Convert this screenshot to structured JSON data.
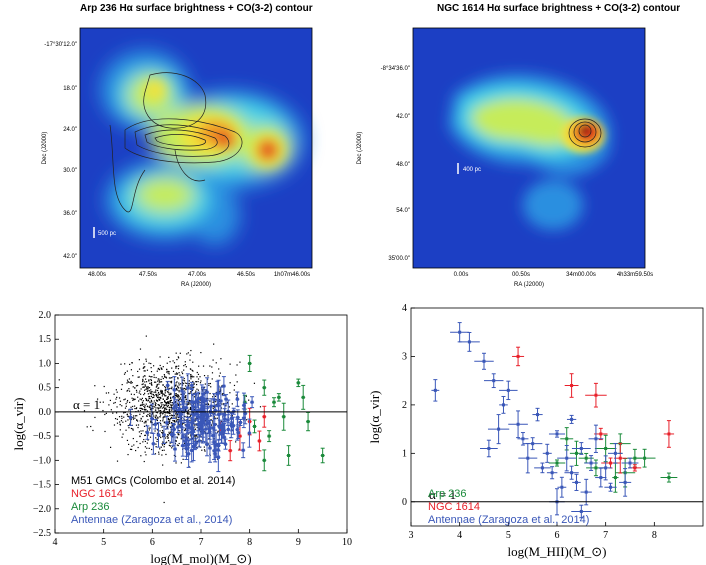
{
  "chart_data": [
    {
      "type": "heatmap",
      "title": "Arp 236 Hα surface brightness + CO(3-2) contour",
      "xlabel": "RA (J2000)",
      "ylabel": "Dec (J2000)",
      "x_ticks": [
        "48.00s",
        "47.50s",
        "47.00s",
        "46.50s",
        "1h07m46.00s"
      ],
      "y_ticks": [
        "-17°30'12.0\"",
        "18.0\"",
        "24.0\"",
        "30.0\"",
        "36.0\"",
        "42.0\""
      ],
      "scalebar": "500 pc",
      "colormap": [
        "#1c3fc4",
        "#2a8fe0",
        "#46d4e8",
        "#c6ec5a",
        "#f2e23a",
        "#f09a28",
        "#e23a1e",
        "#b01810"
      ]
    },
    {
      "type": "heatmap",
      "title": "NGC 1614 Hα surface brightness + CO(3-2) contour",
      "xlabel": "RA (J2000)",
      "ylabel": "Dec (J2000)",
      "x_ticks": [
        "0.00s",
        "00.50s",
        "34m00.00s",
        "4h33m59.50s"
      ],
      "y_ticks": [
        "-8°34'36.0\"",
        "42.0\"",
        "48.0\"",
        "54.0\"",
        "35'00.0\""
      ],
      "scalebar": "400 pc"
    },
    {
      "type": "scatter",
      "xlabel": "log(M_mol)(M_⊙)",
      "ylabel": "log(α_vir)",
      "xlim": [
        4,
        10
      ],
      "ylim": [
        -2.5,
        2.0
      ],
      "x_ticks": [
        "4",
        "5",
        "6",
        "7",
        "8",
        "9",
        "10"
      ],
      "y_ticks": [
        "2.0",
        "1.5",
        "1.0",
        "0.5",
        "0.0",
        "−0.5",
        "−1.0",
        "−1.5",
        "−2.0",
        "−2.5"
      ],
      "hline": {
        "y": 0,
        "label": "α = 1"
      },
      "series": [
        {
          "name": "M51 GMCs (Colombo et al. 2014)",
          "color": "#000000",
          "center": [
            6.4,
            0.1
          ],
          "spread": [
            0.55,
            0.45
          ],
          "count": 1400
        },
        {
          "name": "NGC 1614",
          "color": "#e8202a",
          "points": [
            [
              7.8,
              -0.5
            ],
            [
              8.0,
              -0.2
            ],
            [
              7.6,
              -0.8
            ],
            [
              8.2,
              -0.6
            ],
            [
              7.4,
              -0.3
            ],
            [
              8.3,
              -0.1
            ]
          ]
        },
        {
          "name": "Arp 236",
          "color": "#1a8a3a",
          "points": [
            [
              8.0,
              1.0
            ],
            [
              8.3,
              0.5
            ],
            [
              8.5,
              0.2
            ],
            [
              8.7,
              -0.1
            ],
            [
              9.0,
              0.6
            ],
            [
              9.2,
              -0.2
            ],
            [
              9.5,
              -0.9
            ],
            [
              8.8,
              -0.9
            ],
            [
              8.4,
              -0.5
            ],
            [
              8.1,
              -0.3
            ],
            [
              7.9,
              0.2
            ],
            [
              8.3,
              -1.0
            ],
            [
              8.6,
              0.3
            ],
            [
              9.1,
              0.3
            ]
          ]
        },
        {
          "name": "Antennae (Zaragoza et al., 2014)",
          "color": "#3a57b8",
          "center": [
            7.0,
            -0.2
          ],
          "spread": [
            0.45,
            0.35
          ],
          "count": 140
        }
      ],
      "legend": [
        "M51 GMCs (Colombo et al. 2014)",
        "NGC 1614",
        "Arp 236",
        "Antennae (Zaragoza et al., 2014)"
      ]
    },
    {
      "type": "scatter",
      "xlabel": "log(M_HII)(M_⊙)",
      "ylabel": "log(α_vir)",
      "xlim": [
        3,
        9
      ],
      "ylim": [
        -0.5,
        4.0
      ],
      "x_ticks": [
        "3",
        "4",
        "5",
        "6",
        "7",
        "8"
      ],
      "y_ticks": [
        "4",
        "3",
        "2",
        "1",
        "0"
      ],
      "hline": {
        "y": 0,
        "label": "α = 1"
      },
      "series": [
        {
          "name": "Arp 236",
          "color": "#1a8a3a",
          "points": [
            [
              6.2,
              1.3
            ],
            [
              6.4,
              1.0
            ],
            [
              6.6,
              0.9
            ],
            [
              6.8,
              0.7
            ],
            [
              7.0,
              1.1
            ],
            [
              7.2,
              0.5
            ],
            [
              7.3,
              1.2
            ],
            [
              7.6,
              0.9
            ],
            [
              8.3,
              0.5
            ],
            [
              7.8,
              0.9
            ],
            [
              6.0,
              0.8
            ],
            [
              7.4,
              0.6
            ]
          ]
        },
        {
          "name": "NGC 1614",
          "color": "#e8202a",
          "points": [
            [
              5.2,
              3.0
            ],
            [
              6.3,
              2.4
            ],
            [
              6.8,
              2.2
            ],
            [
              7.3,
              0.9
            ],
            [
              7.6,
              0.7
            ],
            [
              8.3,
              1.4
            ],
            [
              6.9,
              1.4
            ],
            [
              7.1,
              0.8
            ]
          ]
        },
        {
          "name": "Antennae (Zaragoza et al., 2014)",
          "color": "#3a57b8",
          "points": [
            [
              3.5,
              2.3
            ],
            [
              4.0,
              3.5
            ],
            [
              4.2,
              3.3
            ],
            [
              4.5,
              2.9
            ],
            [
              4.7,
              2.5
            ],
            [
              4.9,
              2.0
            ],
            [
              5.0,
              2.3
            ],
            [
              5.2,
              1.6
            ],
            [
              5.5,
              1.2
            ],
            [
              5.6,
              1.8
            ],
            [
              5.8,
              1.0
            ],
            [
              5.9,
              0.6
            ],
            [
              6.0,
              1.4
            ],
            [
              6.1,
              0.3
            ],
            [
              6.2,
              0.9
            ],
            [
              6.3,
              1.7
            ],
            [
              6.4,
              0.4
            ],
            [
              6.5,
              1.1
            ],
            [
              6.6,
              0.2
            ],
            [
              6.7,
              0.8
            ],
            [
              6.8,
              1.3
            ],
            [
              6.9,
              0.5
            ],
            [
              7.0,
              0.7
            ],
            [
              7.1,
              0.3
            ],
            [
              7.2,
              1.0
            ],
            [
              7.4,
              0.4
            ],
            [
              7.5,
              0.8
            ],
            [
              5.3,
              1.3
            ],
            [
              5.7,
              0.7
            ],
            [
              4.6,
              1.1
            ],
            [
              4.8,
              1.5
            ],
            [
              6.0,
              0.0
            ],
            [
              6.5,
              -0.2
            ],
            [
              5.4,
              0.9
            ],
            [
              6.3,
              0.6
            ]
          ]
        }
      ],
      "legend": [
        "Arp 236",
        "NGC 1614",
        "Antennae (Zaragoza et al., 2014)"
      ]
    }
  ]
}
